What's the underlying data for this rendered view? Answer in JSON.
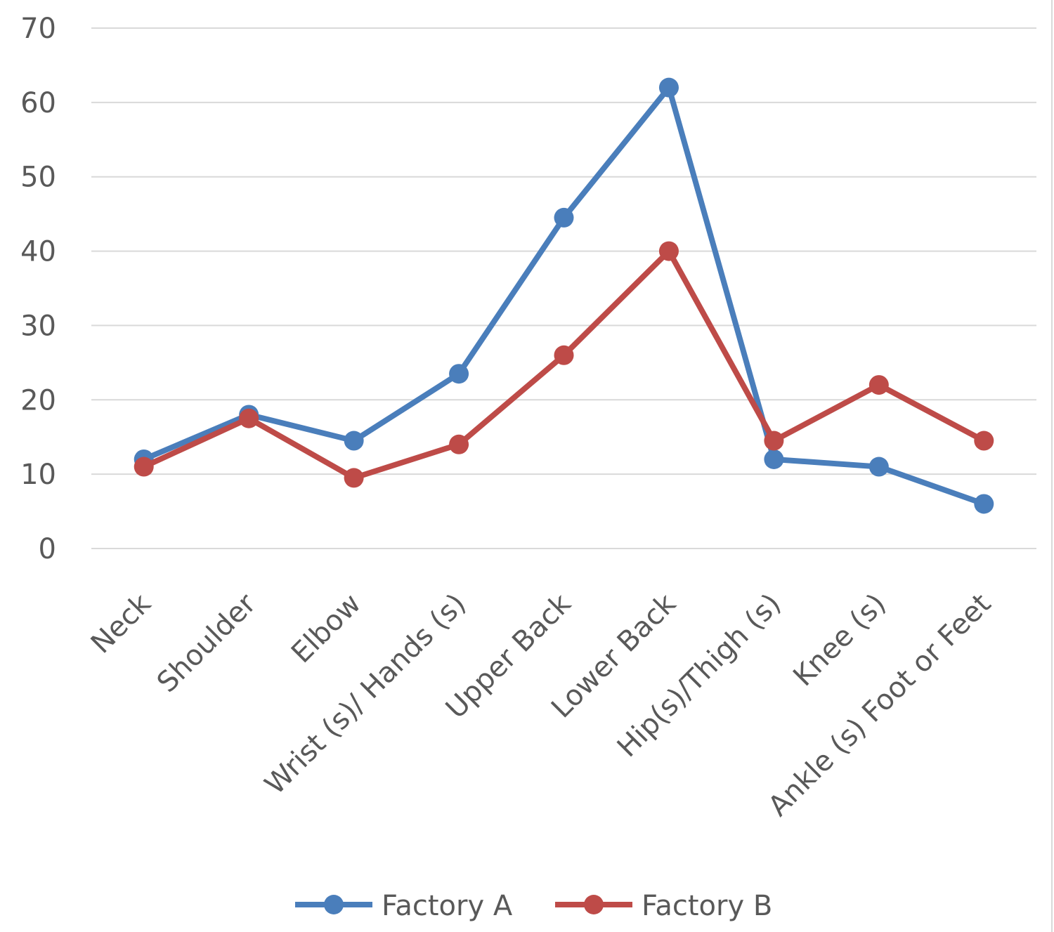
{
  "chart_data": {
    "type": "line",
    "title": "",
    "xlabel": "",
    "ylabel": "",
    "ylim": [
      0,
      70
    ],
    "yticks": [
      "0",
      "10",
      "20",
      "30",
      "40",
      "50",
      "60",
      "70"
    ],
    "grid": true,
    "legend_position": "bottom",
    "categories": [
      "Neck",
      "Shoulder",
      "Elbow",
      "Wrist (s)/ Hands (s)",
      "Upper Back",
      "Lower Back",
      "Hip(s)/Thigh (s)",
      "Knee (s)",
      "Ankle (s) Foot or Feet"
    ],
    "series": [
      {
        "name": "Factory A",
        "color": "#4a7ebb",
        "values": [
          12,
          18,
          14.5,
          23.5,
          44.5,
          62,
          12,
          11,
          6
        ]
      },
      {
        "name": "Factory B",
        "color": "#be4b48",
        "values": [
          11,
          17.5,
          9.5,
          14,
          26,
          40,
          14.5,
          22,
          14.5
        ]
      }
    ]
  }
}
